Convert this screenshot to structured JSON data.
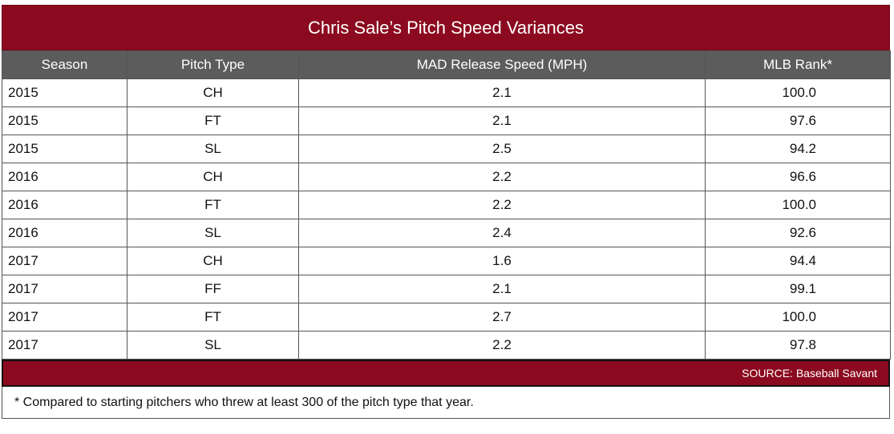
{
  "title": "Chris Sale’s Pitch Speed Variances",
  "columns": [
    "Season",
    "Pitch Type",
    "MAD Release Speed (MPH)",
    "MLB Rank*"
  ],
  "rows": [
    [
      "2015",
      "CH",
      "2.1",
      "100.0"
    ],
    [
      "2015",
      "FT",
      "2.1",
      "97.6"
    ],
    [
      "2015",
      "SL",
      "2.5",
      "94.2"
    ],
    [
      "2016",
      "CH",
      "2.2",
      "96.6"
    ],
    [
      "2016",
      "FT",
      "2.2",
      "100.0"
    ],
    [
      "2016",
      "SL",
      "2.4",
      "92.6"
    ],
    [
      "2017",
      "CH",
      "1.6",
      "94.4"
    ],
    [
      "2017",
      "FF",
      "2.1",
      "99.1"
    ],
    [
      "2017",
      "FT",
      "2.7",
      "100.0"
    ],
    [
      "2017",
      "SL",
      "2.2",
      "97.8"
    ]
  ],
  "source": "SOURCE: Baseball Savant",
  "footnote": "* Compared to starting pitchers who threw at least 300 of the pitch type that year.",
  "colors": {
    "title_bg": "#8b0a1f",
    "header_bg": "#5c5c5c",
    "source_bg": "#8b0a1f"
  }
}
